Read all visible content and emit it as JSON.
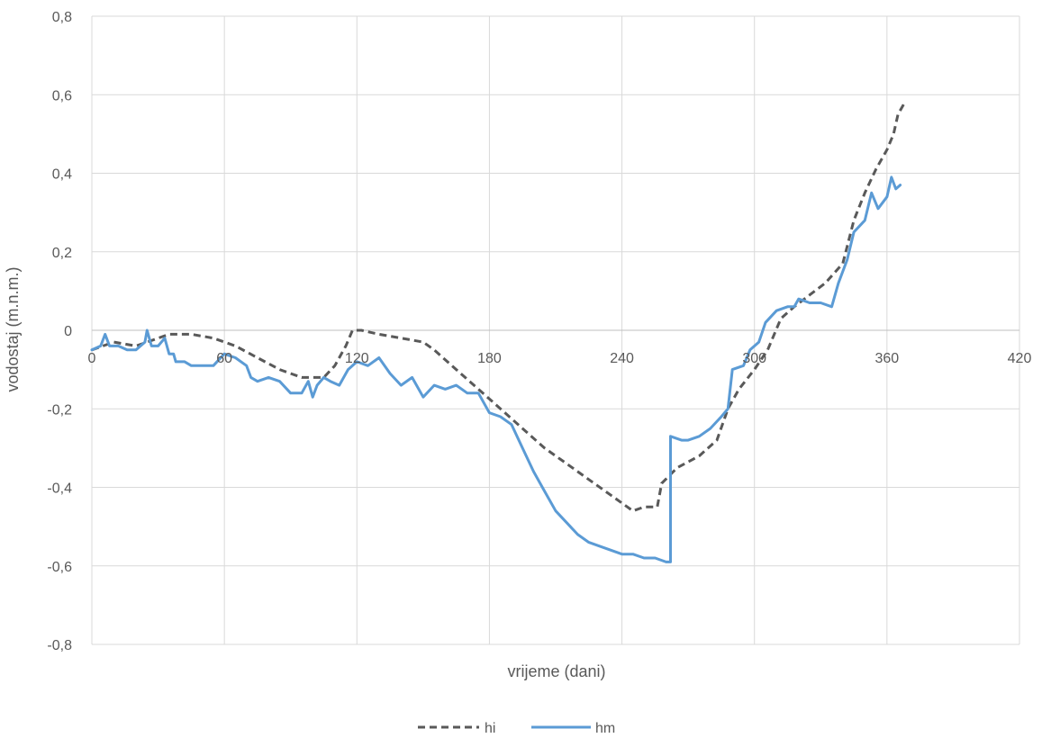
{
  "chart_data": {
    "type": "line",
    "title": "",
    "xlabel": "vrijeme (dani)",
    "ylabel": "vodostaj (m.n.m.)",
    "xlim": [
      0,
      420
    ],
    "ylim": [
      -0.8,
      0.8
    ],
    "x_ticks": [
      0,
      60,
      120,
      180,
      240,
      300,
      360,
      420
    ],
    "y_ticks": [
      0.8,
      0.6,
      0.4,
      0.2,
      0,
      -0.2,
      -0.4,
      -0.6,
      -0.8
    ],
    "x_tick_labels": [
      "0",
      "60",
      "120",
      "180",
      "240",
      "300",
      "360",
      "420"
    ],
    "y_tick_labels": [
      "0,8",
      "0,6",
      "0,4",
      "0,2",
      "0",
      "-0,2",
      "-0,4",
      "-0,6",
      "-0,8"
    ],
    "grid": true,
    "legend_position": "bottom",
    "series": [
      {
        "name": "hi",
        "color": "#595959",
        "dash": "dashed",
        "points": [
          [
            0,
            -0.05
          ],
          [
            5,
            -0.04
          ],
          [
            10,
            -0.03
          ],
          [
            20,
            -0.04
          ],
          [
            25,
            -0.03
          ],
          [
            30,
            -0.02
          ],
          [
            35,
            -0.01
          ],
          [
            45,
            -0.01
          ],
          [
            55,
            -0.02
          ],
          [
            65,
            -0.04
          ],
          [
            75,
            -0.07
          ],
          [
            85,
            -0.1
          ],
          [
            95,
            -0.12
          ],
          [
            105,
            -0.12
          ],
          [
            110,
            -0.09
          ],
          [
            115,
            -0.04
          ],
          [
            118,
            0.0
          ],
          [
            122,
            0.0
          ],
          [
            130,
            -0.01
          ],
          [
            140,
            -0.02
          ],
          [
            150,
            -0.03
          ],
          [
            155,
            -0.05
          ],
          [
            165,
            -0.1
          ],
          [
            175,
            -0.15
          ],
          [
            185,
            -0.2
          ],
          [
            195,
            -0.25
          ],
          [
            205,
            -0.3
          ],
          [
            215,
            -0.34
          ],
          [
            225,
            -0.38
          ],
          [
            235,
            -0.42
          ],
          [
            245,
            -0.46
          ],
          [
            250,
            -0.45
          ],
          [
            256,
            -0.45
          ],
          [
            258,
            -0.39
          ],
          [
            265,
            -0.35
          ],
          [
            275,
            -0.32
          ],
          [
            283,
            -0.28
          ],
          [
            288,
            -0.2
          ],
          [
            293,
            -0.15
          ],
          [
            300,
            -0.1
          ],
          [
            306,
            -0.05
          ],
          [
            312,
            0.03
          ],
          [
            318,
            0.06
          ],
          [
            325,
            0.09
          ],
          [
            332,
            0.12
          ],
          [
            340,
            0.17
          ],
          [
            345,
            0.28
          ],
          [
            350,
            0.35
          ],
          [
            355,
            0.41
          ],
          [
            360,
            0.46
          ],
          [
            363,
            0.5
          ],
          [
            365,
            0.55
          ],
          [
            368,
            0.58
          ]
        ]
      },
      {
        "name": "hm",
        "color": "#5b9bd5",
        "dash": "solid",
        "points": [
          [
            0,
            -0.05
          ],
          [
            4,
            -0.04
          ],
          [
            6,
            -0.01
          ],
          [
            8,
            -0.04
          ],
          [
            12,
            -0.04
          ],
          [
            16,
            -0.05
          ],
          [
            20,
            -0.05
          ],
          [
            24,
            -0.03
          ],
          [
            25,
            0.0
          ],
          [
            27,
            -0.04
          ],
          [
            30,
            -0.04
          ],
          [
            33,
            -0.02
          ],
          [
            35,
            -0.06
          ],
          [
            37,
            -0.06
          ],
          [
            38,
            -0.08
          ],
          [
            42,
            -0.08
          ],
          [
            45,
            -0.09
          ],
          [
            50,
            -0.09
          ],
          [
            55,
            -0.09
          ],
          [
            60,
            -0.06
          ],
          [
            65,
            -0.07
          ],
          [
            70,
            -0.09
          ],
          [
            72,
            -0.12
          ],
          [
            75,
            -0.13
          ],
          [
            80,
            -0.12
          ],
          [
            85,
            -0.13
          ],
          [
            90,
            -0.16
          ],
          [
            95,
            -0.16
          ],
          [
            98,
            -0.13
          ],
          [
            100,
            -0.17
          ],
          [
            102,
            -0.14
          ],
          [
            105,
            -0.12
          ],
          [
            108,
            -0.13
          ],
          [
            112,
            -0.14
          ],
          [
            116,
            -0.1
          ],
          [
            120,
            -0.08
          ],
          [
            125,
            -0.09
          ],
          [
            130,
            -0.07
          ],
          [
            135,
            -0.11
          ],
          [
            140,
            -0.14
          ],
          [
            145,
            -0.12
          ],
          [
            150,
            -0.17
          ],
          [
            155,
            -0.14
          ],
          [
            160,
            -0.15
          ],
          [
            165,
            -0.14
          ],
          [
            170,
            -0.16
          ],
          [
            175,
            -0.16
          ],
          [
            180,
            -0.21
          ],
          [
            185,
            -0.22
          ],
          [
            190,
            -0.24
          ],
          [
            195,
            -0.3
          ],
          [
            200,
            -0.36
          ],
          [
            205,
            -0.41
          ],
          [
            210,
            -0.46
          ],
          [
            215,
            -0.49
          ],
          [
            220,
            -0.52
          ],
          [
            225,
            -0.54
          ],
          [
            230,
            -0.55
          ],
          [
            235,
            -0.56
          ],
          [
            240,
            -0.57
          ],
          [
            245,
            -0.57
          ],
          [
            250,
            -0.58
          ],
          [
            255,
            -0.58
          ],
          [
            260,
            -0.59
          ],
          [
            262,
            -0.59
          ],
          [
            262,
            -0.27
          ],
          [
            267,
            -0.28
          ],
          [
            270,
            -0.28
          ],
          [
            275,
            -0.27
          ],
          [
            280,
            -0.25
          ],
          [
            285,
            -0.22
          ],
          [
            288,
            -0.2
          ],
          [
            290,
            -0.1
          ],
          [
            295,
            -0.09
          ],
          [
            298,
            -0.05
          ],
          [
            302,
            -0.03
          ],
          [
            305,
            0.02
          ],
          [
            310,
            0.05
          ],
          [
            315,
            0.06
          ],
          [
            318,
            0.06
          ],
          [
            320,
            0.08
          ],
          [
            325,
            0.07
          ],
          [
            330,
            0.07
          ],
          [
            335,
            0.06
          ],
          [
            338,
            0.12
          ],
          [
            342,
            0.18
          ],
          [
            345,
            0.25
          ],
          [
            350,
            0.28
          ],
          [
            353,
            0.35
          ],
          [
            356,
            0.31
          ],
          [
            360,
            0.34
          ],
          [
            362,
            0.39
          ],
          [
            364,
            0.36
          ],
          [
            366,
            0.37
          ]
        ]
      }
    ]
  }
}
